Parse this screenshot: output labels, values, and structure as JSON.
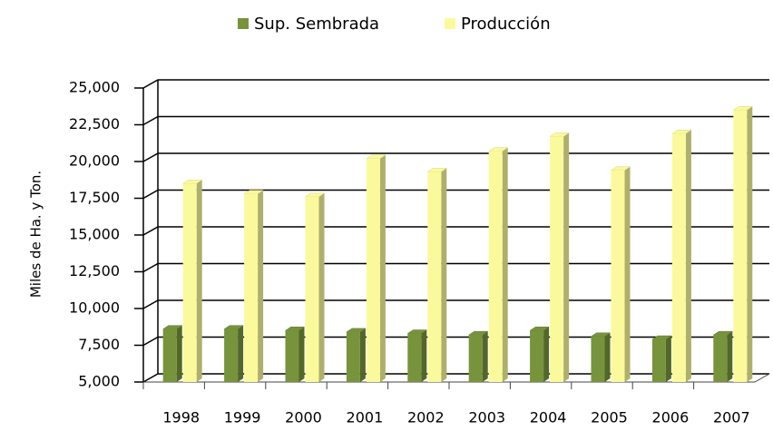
{
  "chart_data": {
    "type": "bar3d",
    "y_axis_label": "Miles de Ha. y Ton.",
    "categories": [
      "1998",
      "1999",
      "2000",
      "2001",
      "2002",
      "2003",
      "2004",
      "2005",
      "2006",
      "2007"
    ],
    "series": [
      {
        "name": "Sup. Sembrada",
        "color": "#77933c",
        "values": [
          8600,
          8600,
          8500,
          8400,
          8300,
          8200,
          8500,
          8100,
          7900,
          8200
        ]
      },
      {
        "name": "Producción",
        "color": "#fafa9c",
        "values": [
          18500,
          17800,
          17600,
          20200,
          19300,
          20700,
          21700,
          19400,
          21900,
          23500
        ]
      }
    ],
    "ylim": [
      5000,
      25000
    ],
    "yticks": [
      {
        "value": 5000,
        "label": "5,000"
      },
      {
        "value": 7500,
        "label": "7,500"
      },
      {
        "value": 10000,
        "label": "10,000"
      },
      {
        "value": 12500,
        "label": "12,500"
      },
      {
        "value": 15000,
        "label": "15,000"
      },
      {
        "value": 17500,
        "label": "17,500"
      },
      {
        "value": 20000,
        "label": "20,000"
      },
      {
        "value": 22500,
        "label": "22,500"
      },
      {
        "value": 25000,
        "label": "25,000"
      }
    ],
    "grid": true,
    "legend": "top"
  }
}
